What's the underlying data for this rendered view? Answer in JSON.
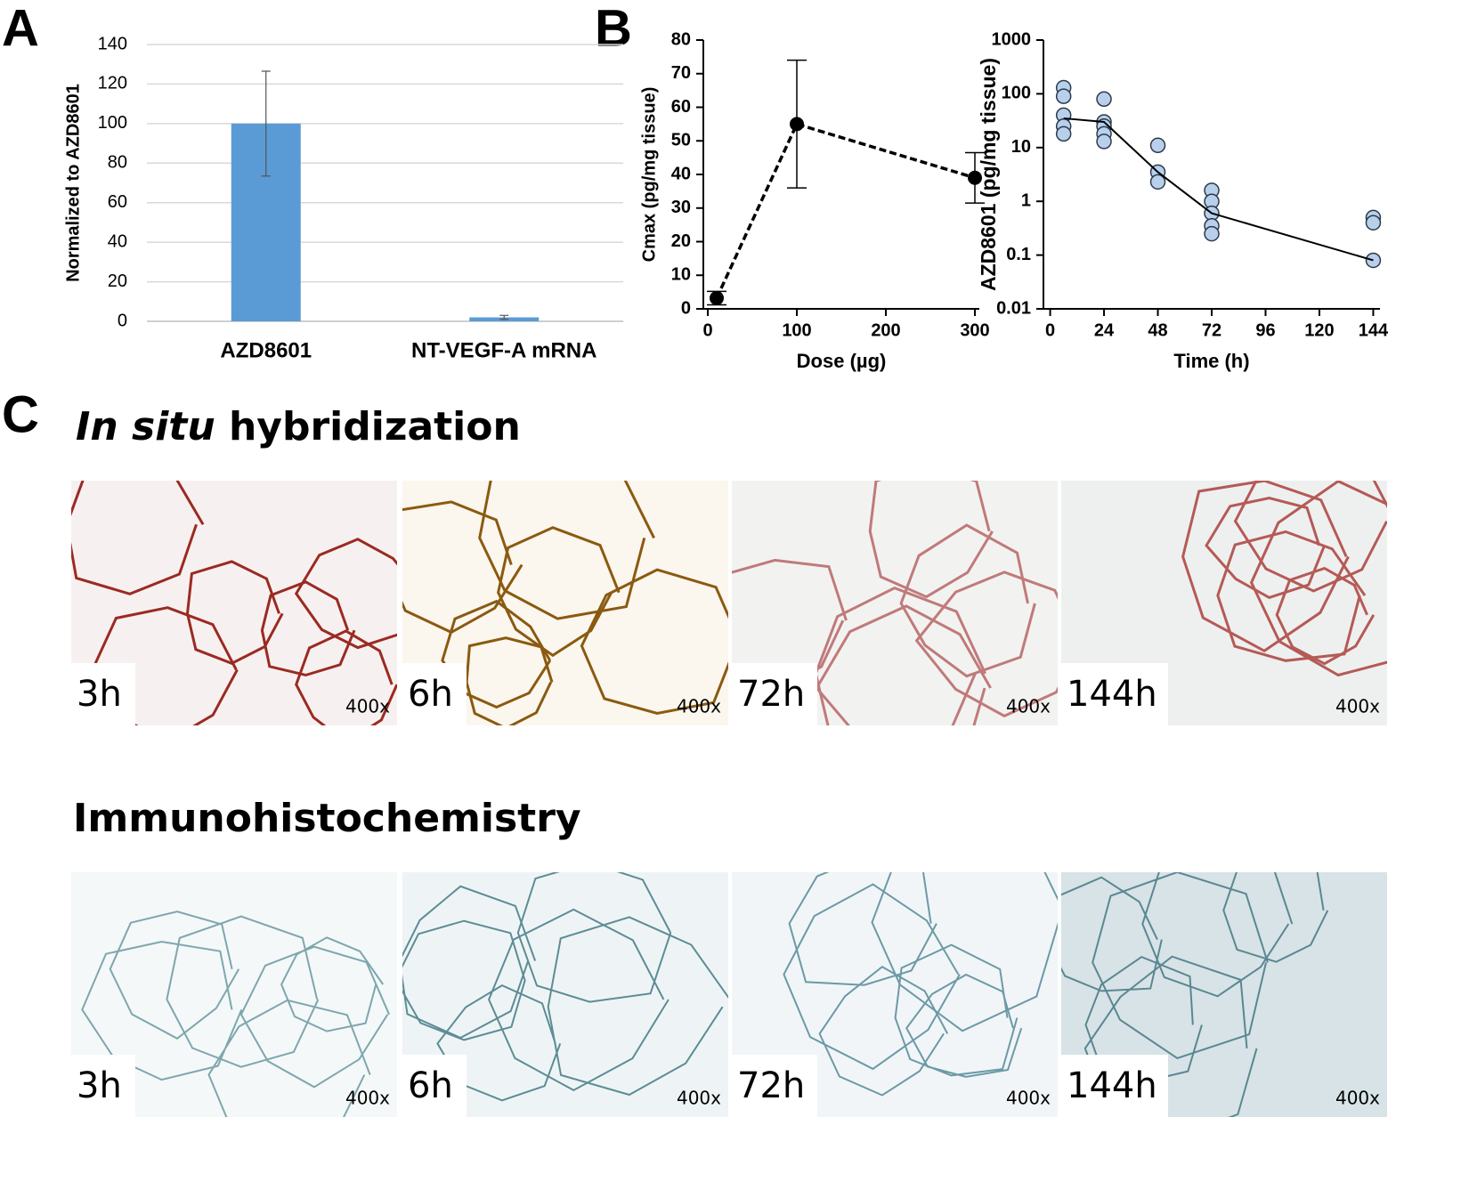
{
  "panel_labels": [
    "A",
    "B",
    "C"
  ],
  "chart_data": [
    {
      "type": "bar",
      "y_label": "Normalized to AZD8601",
      "categories": [
        "AZD8601",
        "NT-VEGF-A mRNA"
      ],
      "values": [
        100,
        2
      ],
      "errors": [
        26.5,
        1
      ],
      "color": "#5b9bd5",
      "ylim": [
        0,
        140
      ],
      "yticks": [
        0,
        20,
        40,
        60,
        80,
        100,
        120,
        140
      ],
      "grid": true
    },
    {
      "type": "line",
      "y_label": "Cmax (pg/mg tissue)",
      "x_label": "Dose (µg)",
      "x": [
        10,
        100,
        300
      ],
      "values": [
        3.2,
        55,
        39
      ],
      "errors": [
        2,
        19,
        7.5
      ],
      "color": "#000000",
      "dashed": true,
      "xlim": [
        -5,
        305
      ],
      "xticks": [
        0,
        100,
        200,
        300
      ],
      "ylim": [
        0,
        80
      ],
      "yticks": [
        0,
        10,
        20,
        30,
        40,
        50,
        60,
        70,
        80
      ]
    },
    {
      "type": "scatter",
      "y_label": "AZD8601 (pg/mg tissue)",
      "x_label": "Time (h)",
      "log_y": true,
      "xlim": [
        -3,
        147
      ],
      "xticks": [
        0,
        24,
        48,
        72,
        96,
        120,
        144
      ],
      "ylim": [
        0.01,
        1000
      ],
      "yticks": [
        0.01,
        0.1,
        1,
        10,
        100,
        1000
      ],
      "series": [
        {
          "mode": "markers",
          "color": "#b8d0ec",
          "x": [
            6,
            6,
            6,
            6,
            6,
            24,
            24,
            24,
            24,
            24,
            48,
            48,
            48,
            72,
            72,
            72,
            72,
            72,
            144,
            144,
            144
          ],
          "values": [
            130,
            90,
            40,
            25,
            18,
            80,
            30,
            25,
            18,
            13,
            11,
            3.5,
            2.3,
            1.6,
            1.0,
            0.6,
            0.35,
            0.25,
            0.5,
            0.4,
            0.08
          ]
        },
        {
          "mode": "lines",
          "color": "#000000",
          "x": [
            6,
            24,
            48,
            72,
            144
          ],
          "values": [
            35,
            30,
            3.5,
            0.6,
            0.08
          ]
        }
      ]
    }
  ],
  "section_c": {
    "ish_title": [
      "In situ",
      "hybridization"
    ],
    "ihc_title": "Immunohistochemistry",
    "ish_panels": [
      {
        "time": "3h",
        "magnification": "400x"
      },
      {
        "time": "6h",
        "magnification": "400x"
      },
      {
        "time": "72h",
        "magnification": "400x"
      },
      {
        "time": "144h",
        "magnification": "400x"
      }
    ],
    "ihc_panels": [
      {
        "time": "3h",
        "magnification": "400x"
      },
      {
        "time": "6h",
        "magnification": "400x"
      },
      {
        "time": "72h",
        "magnification": "400x"
      },
      {
        "time": "144h",
        "magnification": "400x"
      }
    ]
  }
}
